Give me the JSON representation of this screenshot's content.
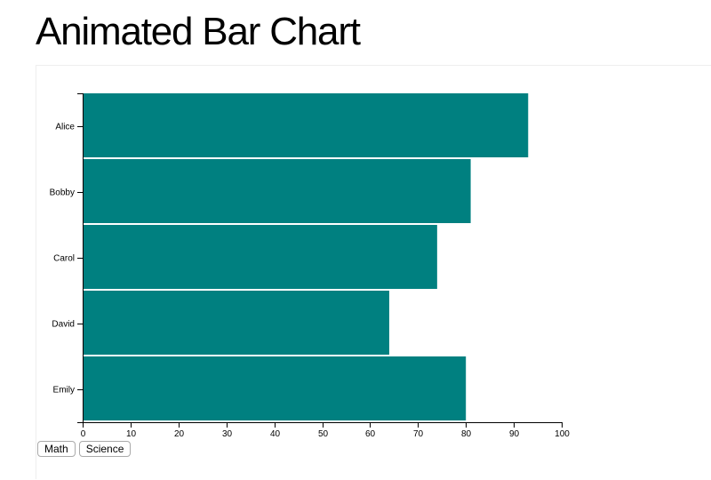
{
  "page": {
    "title": "Animated Bar Chart"
  },
  "colors": {
    "bar": "#008080",
    "axis": "#000000"
  },
  "buttons": [
    {
      "label": "Math"
    },
    {
      "label": "Science"
    }
  ],
  "chart_data": {
    "type": "bar",
    "orientation": "horizontal",
    "categories": [
      "Alice",
      "Bobby",
      "Carol",
      "David",
      "Emily"
    ],
    "values": [
      93,
      81,
      74,
      64,
      80
    ],
    "xlim": [
      0,
      100
    ],
    "xticks": [
      0,
      10,
      20,
      30,
      40,
      50,
      60,
      70,
      80,
      90,
      100
    ],
    "grid": false,
    "legend": "none"
  }
}
